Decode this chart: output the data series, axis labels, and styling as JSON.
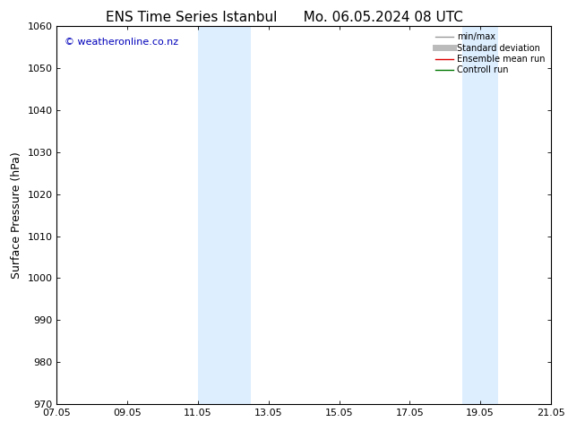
{
  "title_left": "ENS Time Series Istanbul",
  "title_right": "Mo. 06.05.2024 08 UTC",
  "ylabel": "Surface Pressure (hPa)",
  "ylim": [
    970,
    1060
  ],
  "yticks": [
    970,
    980,
    990,
    1000,
    1010,
    1020,
    1030,
    1040,
    1050,
    1060
  ],
  "xtick_labels": [
    "07.05",
    "09.05",
    "11.05",
    "13.05",
    "15.05",
    "17.05",
    "19.05",
    "21.05"
  ],
  "xtick_positions": [
    7,
    9,
    11,
    13,
    15,
    17,
    19,
    21
  ],
  "xlim": [
    7,
    21
  ],
  "shaded_bands": [
    {
      "x_start": 11.0,
      "x_end": 12.5
    },
    {
      "x_start": 18.5,
      "x_end": 19.5
    }
  ],
  "shade_color": "#ddeeff",
  "copyright_text": "© weatheronline.co.nz",
  "copyright_color": "#0000bb",
  "legend_entries": [
    {
      "label": "min/max",
      "color": "#999999",
      "lw": 1.0
    },
    {
      "label": "Standard deviation",
      "color": "#bbbbbb",
      "lw": 5
    },
    {
      "label": "Ensemble mean run",
      "color": "#dd0000",
      "lw": 1.0
    },
    {
      "label": "Controll run",
      "color": "#007700",
      "lw": 1.0
    }
  ],
  "bg_color": "#ffffff",
  "plot_bg_color": "#ffffff",
  "spine_color": "#000000",
  "tick_color": "#000000",
  "title_fontsize": 11,
  "ylabel_fontsize": 9,
  "tick_fontsize": 8,
  "copyright_fontsize": 8,
  "legend_fontsize": 7
}
